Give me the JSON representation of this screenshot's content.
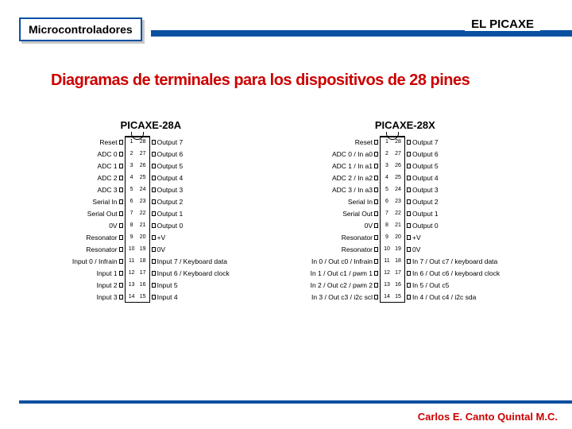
{
  "header": {
    "tag": "Microcontroladores",
    "right_title": "EL PICAXE"
  },
  "main_title": "Diagramas de terminales para los dispositivos de 28 pines",
  "footer": {
    "author": "Carlos E. Canto Quintal M.C."
  },
  "colors": {
    "accent_blue": "#0a50a1",
    "accent_red": "#cc0000",
    "bg": "#ffffff"
  },
  "chips": [
    {
      "title": "PICAXE-28A",
      "left": [
        "Reset",
        "ADC 0",
        "ADC 1",
        "ADC 2",
        "ADC 3",
        "Serial In",
        "Serial Out",
        "0V",
        "Resonator",
        "Resonator",
        "Input 0 / Infrain",
        "Input 1",
        "Input 2",
        "Input 3"
      ],
      "right": [
        "Output 7",
        "Output 6",
        "Output 5",
        "Output 4",
        "Output 3",
        "Output 2",
        "Output 1",
        "Output 0",
        "+V",
        "0V",
        "Input 7 / Keyboard data",
        "Input 6 / Keyboard clock",
        "Input 5",
        "Input 4"
      ]
    },
    {
      "title": "PICAXE-28X",
      "left": [
        "Reset",
        "ADC 0 / In a0",
        "ADC 1 / In a1",
        "ADC 2 / In a2",
        "ADC 3 / In a3",
        "Serial In",
        "Serial Out",
        "0V",
        "Resonator",
        "Resonator",
        "In 0 / Out c0 / Infrain",
        "In 1 / Out c1 / pwm 1",
        "In 2 / Out c2 / pwm 2",
        "In 3 / Out c3 / i2c scl"
      ],
      "right": [
        "Output 7",
        "Output 6",
        "Output 5",
        "Output 4",
        "Output 3",
        "Output 2",
        "Output 1",
        "Output 0",
        "+V",
        "0V",
        "In 7 / Out c7 / keyboard data",
        "In 6 / Out c6 / keyboard clock",
        "In 5 / Out c5",
        "In 4 / Out c4 / i2c sda"
      ]
    }
  ]
}
